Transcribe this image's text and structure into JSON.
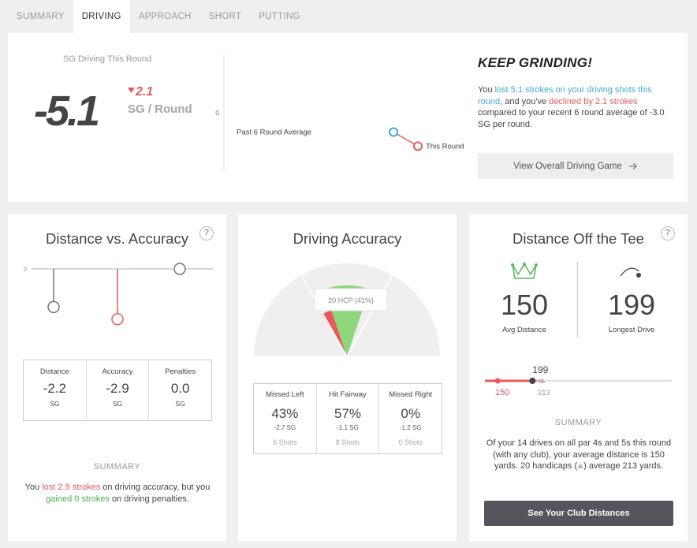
{
  "tabs": [
    {
      "label": "SUMMARY"
    },
    {
      "label": "DRIVING"
    },
    {
      "label": "APPROACH"
    },
    {
      "label": "SHORT"
    },
    {
      "label": "PUTTING"
    }
  ],
  "top": {
    "sg_label": "SG Driving This Round",
    "sg_value": "-5.1",
    "delta": "2.1",
    "delta_unit": "SG / Round",
    "chart": {
      "zero_label": "0",
      "avg_label": "Past 6 Round Average",
      "this_label": "This Round",
      "avg_value": -3.0,
      "this_value": -5.1
    },
    "headline": "KEEP GRINDING!",
    "text_1": "You ",
    "text_2": "lost 5.1 strokes on your driving shots this round",
    "text_3": ", and you've ",
    "text_4": "declined by 2.1 strokes",
    "text_5": " compared to your recent 6 round average of -3.0 SG per round.",
    "button": "View Overall Driving Game",
    "button_icon": "arrow-right-icon"
  },
  "distance_accuracy": {
    "title": "Distance vs. Accuracy",
    "help": "?",
    "zero_label": "0",
    "pins": [
      {
        "name": "Distance",
        "value": -2.2,
        "color": "#777777"
      },
      {
        "name": "Accuracy",
        "value": -2.9,
        "color": "#e85a5a"
      },
      {
        "name": "Penalties",
        "value": 0.0,
        "color": "#777777"
      }
    ],
    "stats": [
      {
        "label": "Distance",
        "value": "-2.2",
        "sub": "SG",
        "color": "#444444"
      },
      {
        "label": "Accuracy",
        "value": "-2.9",
        "sub": "SG",
        "color": "#e85a5a"
      },
      {
        "label": "Penalties",
        "value": "0.0",
        "sub": "SG",
        "color": "#4caf50"
      }
    ],
    "summary_heading": "SUMMARY",
    "summary_1": "You ",
    "summary_2": "lost 2.9 strokes",
    "summary_3": " on driving accuracy, but you ",
    "summary_4": "gained 0 strokes",
    "summary_5": " on driving penalties."
  },
  "driving_accuracy": {
    "title": "Driving Accuracy",
    "tooltip": "20 HCP (41%)",
    "missed_left_pct": 0.43,
    "fairway_pct": 0.57,
    "hcp_fairway_pct": 0.41,
    "stats": [
      {
        "label": "Missed Left",
        "value": "43%",
        "sub": "-2.7 SG",
        "shots": "6 Shots",
        "color": "#e85a5a"
      },
      {
        "label": "Hit Fairway",
        "value": "57%",
        "sub": "-1.1 SG",
        "shots": "8 Shots",
        "color": "#444444"
      },
      {
        "label": "Missed Right",
        "value": "0%",
        "sub": "-1.2 SG",
        "shots": "0 Shots",
        "color": "#444444"
      }
    ]
  },
  "distance_tee": {
    "title": "Distance Off the Tee",
    "help": "?",
    "avg_value": "150",
    "avg_label": "Avg Distance",
    "avg_icon": "crown-icon",
    "longest_value": "199",
    "longest_label": "Longest Drive",
    "longest_icon": "ball-flight-icon",
    "bar": {
      "avg": 150,
      "longest": 199,
      "hcp": 213,
      "avg_label": "150",
      "longest_label": "199",
      "hcp_label": "213"
    },
    "summary_heading": "SUMMARY",
    "summary_1": "Of your 14 drives on all par 4s and 5s this round (with any club), your average distance is 150 yards. 20 handicaps (",
    "summary_2": ") average 213 yards.",
    "button": "See Your Club Distances"
  },
  "colors": {
    "red": "#e85a5a",
    "blue": "#3fa9d8",
    "green": "#4caf50",
    "fairway": "#8fd77c"
  }
}
